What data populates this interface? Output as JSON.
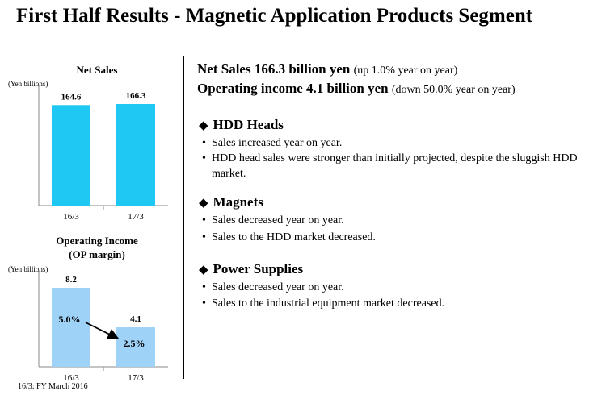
{
  "page": {
    "title": "First Half Results - Magnetic Application Products Segment",
    "footnote": "16/3: FY March 2016"
  },
  "chart_data": [
    {
      "type": "bar",
      "title": "Net Sales",
      "unit": "(Yen billions)",
      "categories": [
        "16/3",
        "17/3"
      ],
      "values": [
        164.6,
        166.3
      ],
      "value_labels": [
        "164.6",
        "166.3"
      ],
      "color": "#1fc8f2"
    },
    {
      "type": "bar",
      "title": "Operating Income",
      "subtitle": "(OP margin)",
      "unit": "(Yen billions)",
      "categories": [
        "16/3",
        "17/3"
      ],
      "values": [
        8.2,
        4.1
      ],
      "value_labels": [
        "8.2",
        "4.1"
      ],
      "margin_labels": [
        "5.0%",
        "2.5%"
      ],
      "color": "#9fd2f7"
    }
  ],
  "summary": {
    "net_sales": {
      "main": "Net Sales 166.3 billion yen",
      "note": "(up 1.0% year on year)"
    },
    "operating_income": {
      "main": "Operating income 4.1 billion yen",
      "note": "(down 50.0% year on year)"
    }
  },
  "sections": [
    {
      "heading": "HDD Heads",
      "bullets": [
        "Sales increased year on year.",
        "HDD head sales were stronger than initially projected, despite the sluggish HDD market."
      ]
    },
    {
      "heading": "Magnets",
      "bullets": [
        "Sales decreased year on year.",
        "Sales to the HDD market decreased."
      ]
    },
    {
      "heading": "Power Supplies",
      "bullets": [
        "Sales decreased year on year.",
        "Sales to the industrial equipment market decreased."
      ]
    }
  ],
  "glyphs": {
    "diamond": "◆",
    "bullet": "•"
  }
}
